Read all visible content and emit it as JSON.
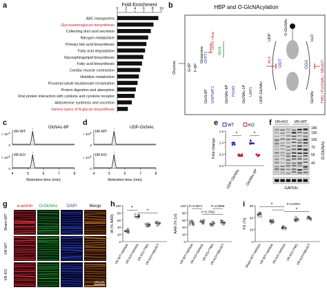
{
  "panel_letters": {
    "a": "a",
    "b": "b",
    "c": "c",
    "d": "d",
    "e": "e",
    "f": "f",
    "g": "g",
    "h": "h",
    "i": "i"
  },
  "panel_a": {
    "title": "Fold Enrichment",
    "ticks": [
      "0",
      "2",
      "4",
      "6",
      "8",
      "10"
    ],
    "highlight_color": "#c0202f",
    "chart_data": {
      "type": "bar",
      "orientation": "horizontal",
      "categories": [
        "ABC transporters",
        "Glycosaminoglycan biosynthesis",
        "Collecting duct acid secretion",
        "Nitrogen metabolism",
        "Primary bile acid biosynthesis",
        "Fatty acid degradation",
        "Glycosphingolipid biosynthesis",
        "Fatty acid biosynthesis",
        "Cardiac muscle contraction",
        "Histidine metabolism",
        "Proximal tubule bicarbonate reclamation",
        "Protein digestion and absorption",
        "Viral protein interaction with cytokine and cytokine receptor",
        "Aldosterone synthesis and secretion",
        "Various types of N-glycan biosynthesis"
      ],
      "values": [
        9.3,
        8.2,
        7.6,
        7.0,
        6.6,
        6.3,
        5.9,
        5.6,
        5.2,
        4.9,
        4.6,
        4.2,
        3.9,
        3.3,
        2.4
      ],
      "highlighted": [
        false,
        true,
        false,
        false,
        false,
        false,
        false,
        false,
        false,
        false,
        false,
        false,
        false,
        false,
        true
      ],
      "xlim": [
        0,
        10
      ]
    }
  },
  "panel_b": {
    "title": "HBP and O-GlcNAcylation",
    "nodes": {
      "glucose": "Glucose",
      "g6p": "G-6P",
      "f6p": "F-6P",
      "glutamine": "Glutamine",
      "glcn6p": "GlcN-6P",
      "glcnac6p": "GlcNAc-6P",
      "glcnac1p": "GlcNAc-1P",
      "udp_glcnac": "UDP-GlcNAc",
      "udp": "UDP",
      "o_glcnac": "O-GlcNAc",
      "h2o": "H₂O",
      "glcnac_right": "GlcNAc"
    },
    "enzymes": {
      "gfpt1": "GFPT1",
      "gnpnat1": "GNPNAT1",
      "pgm3": "PGM3",
      "uap1": "UAP1",
      "ogt": "OGT",
      "oga": "OGA"
    },
    "inhibitors": {
      "don_aza": "DON / Aza",
      "glcn": "GlcN",
      "alx": "ALX",
      "oga_inhibitors": "TMG / PUGNAc / NButGT"
    },
    "colors": {
      "blue": "#2233aa",
      "red": "#c0202f",
      "green": "#1c8a2e"
    }
  },
  "panel_c": {
    "traces": [
      {
        "label": "I/R-WT"
      },
      {
        "label": "I/R-KO"
      }
    ],
    "compound": "GlcNAc-6P",
    "y_exponent": "× 10⁵",
    "x_ticks": [
      "4",
      "5",
      "6",
      "7",
      "8"
    ],
    "xlabel": "Retention time (min)"
  },
  "panel_d": {
    "traces": [
      {
        "label": "I/R-WT"
      },
      {
        "label": "I/R-KO"
      }
    ],
    "compound": "UDP-GlcNAc",
    "y_exponent": "× 10⁵",
    "x_ticks": [
      "4",
      "5",
      "6",
      "7",
      "8"
    ],
    "xlabel": "Retention time (min)"
  },
  "panel_e": {
    "legend": [
      {
        "name": "WT",
        "color": "#2233aa"
      },
      {
        "name": "KO",
        "color": "#c0202f"
      }
    ],
    "ylabel": "Fold change",
    "y_ticks": [
      "0.0",
      "0.5",
      "1.0",
      "1.5"
    ],
    "categories": [
      "UDP-GlcNAc",
      "GlcNAc-6P"
    ],
    "sig": [
      "*",
      "*"
    ]
  },
  "panel_f": {
    "group_labels": [
      "I/R+KO",
      "I/R+WT"
    ],
    "markers": [
      "180",
      "130",
      "100",
      "70",
      "55",
      "40"
    ],
    "antibody": "O-GlcNAc",
    "loading": "GAPDH"
  },
  "panel_g": {
    "columns": [
      {
        "label": "α-actinin",
        "color": "#c0202f"
      },
      {
        "label": "O-GlcNAc",
        "color": "#1c8a2e"
      },
      {
        "label": "DAPI",
        "color": "#2233aa"
      },
      {
        "label": "Merge",
        "color": "#111111"
      }
    ],
    "rows": [
      "Sham-WT",
      "I/R-WT",
      "I/R-KO"
    ],
    "scale_bar": "100 μm"
  },
  "panel_h": {
    "ia": {
      "ylabel": "IA (% AAR)",
      "y_ticks": [
        "0",
        "20",
        "40",
        "60",
        "80",
        "100"
      ],
      "ylim": [
        0,
        100
      ],
      "groups": [
        "I/R-WT+Vehicle",
        "I/R-KO+Vehicle",
        "I/R-KO+TMG",
        "I/R-KO+NButGT"
      ],
      "means": [
        30,
        70,
        48,
        50
      ],
      "sig": [
        "*",
        "*"
      ]
    },
    "aar": {
      "ylabel": "AAR (% LV)",
      "y_ticks": [
        "0",
        "20",
        "40",
        "60",
        "80",
        "100"
      ],
      "ylim": [
        0,
        100
      ],
      "groups": [
        "I/R-WT+Vehicle",
        "I/R-KO+Vehicle",
        "I/R-KO+TMG",
        "I/R-KO+NButGT"
      ],
      "means": [
        52,
        55,
        50,
        53
      ],
      "p_values": [
        "P=0.9871",
        "P=0.9999",
        "P=0.7062"
      ]
    }
  },
  "panel_i": {
    "ylabel": "FS (%)",
    "y_ticks": [
      "0",
      "20",
      "40",
      "60"
    ],
    "ylim": [
      0,
      60
    ],
    "groups": [
      "Sham-WT+Vehicle",
      "I/R-WT+Vehicle",
      "I/R-KO+Vehicle",
      "I/R-KO+TMG",
      "I/R-KO+NButGT"
    ],
    "means": [
      45,
      33,
      23,
      38,
      38
    ],
    "p_value": "P=0.0004",
    "sig": [
      "*",
      "*"
    ]
  }
}
